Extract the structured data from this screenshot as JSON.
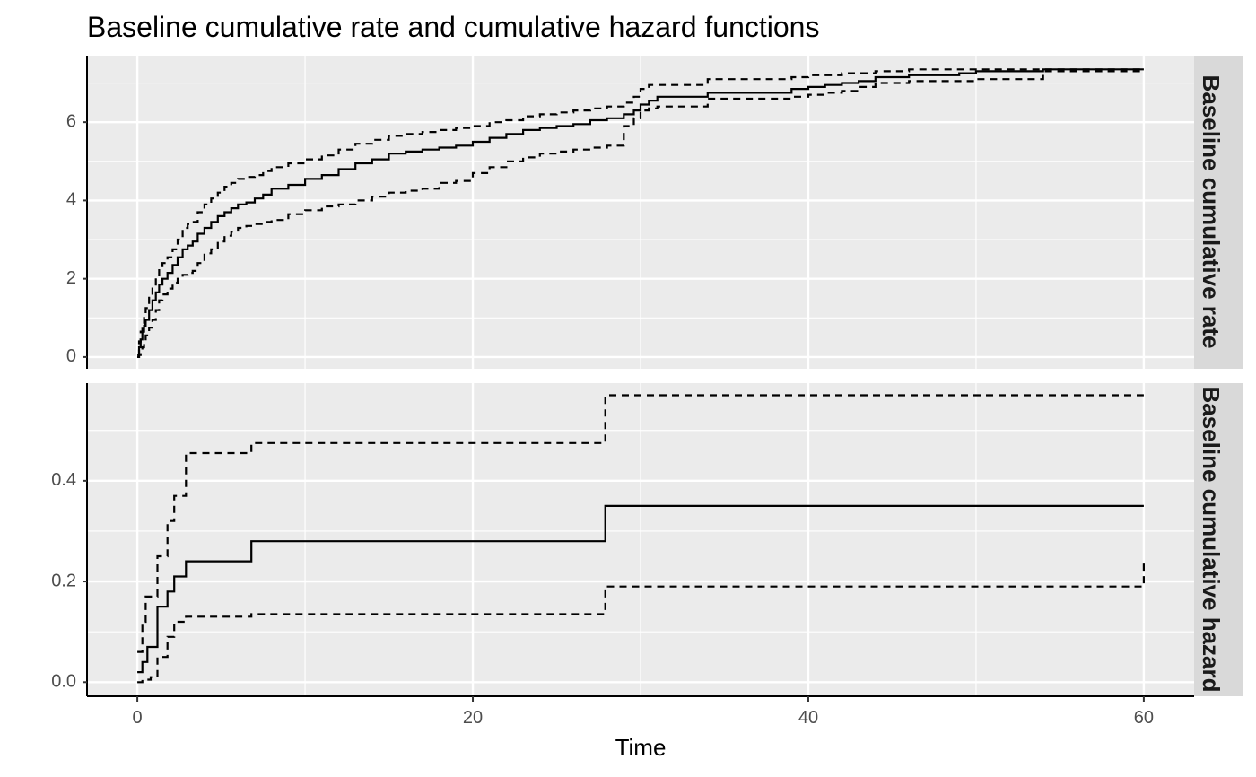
{
  "chart_data": {
    "type": "line",
    "title": "Baseline cumulative rate and cumulative hazard functions",
    "xlabel": "Time",
    "ylabel": "",
    "x_ticks": [
      0,
      20,
      40,
      60
    ],
    "xlim": [
      -3,
      63
    ],
    "grid": true,
    "line_color": "#000000",
    "panel_background": "#ebebeb",
    "strip_background": "#d9d9d9",
    "panels": [
      {
        "strip_label": "Baseline cumulative rate",
        "ylim": [
          -0.3,
          7.7
        ],
        "y_ticks": [
          0,
          2,
          4,
          6
        ],
        "series": [
          {
            "style": "solid",
            "x": [
              0,
              0.1,
              0.2,
              0.3,
              0.4,
              0.5,
              0.7,
              0.9,
              1.1,
              1.3,
              1.5,
              1.8,
              2.1,
              2.4,
              2.7,
              3.0,
              3.3,
              3.6,
              4.0,
              4.4,
              4.8,
              5.2,
              5.6,
              6.0,
              6.5,
              7.0,
              7.5,
              8.0,
              9.0,
              10.0,
              11.0,
              12.0,
              13.0,
              14.0,
              15.0,
              16.0,
              17.0,
              18.0,
              19.0,
              20.0,
              21.0,
              22.0,
              23.0,
              24.0,
              25.0,
              26.0,
              27.0,
              28.0,
              29.0,
              29.6,
              30.0,
              30.5,
              31.0,
              32.0,
              33.0,
              34.0,
              36.0,
              38.0,
              39.0,
              40.0,
              41.0,
              42.0,
              43.0,
              44.0,
              46.0,
              48.0,
              49.0,
              50.0,
              52.0,
              54.0,
              56.0,
              58.0,
              60.0
            ],
            "y": [
              0,
              0.25,
              0.45,
              0.65,
              0.8,
              0.95,
              1.2,
              1.45,
              1.65,
              1.85,
              2.0,
              2.15,
              2.35,
              2.55,
              2.75,
              2.85,
              2.95,
              3.15,
              3.3,
              3.45,
              3.6,
              3.7,
              3.8,
              3.9,
              3.95,
              4.05,
              4.15,
              4.3,
              4.4,
              4.55,
              4.65,
              4.8,
              4.95,
              5.05,
              5.2,
              5.25,
              5.3,
              5.35,
              5.4,
              5.5,
              5.6,
              5.7,
              5.8,
              5.85,
              5.9,
              5.95,
              6.05,
              6.1,
              6.2,
              6.3,
              6.45,
              6.55,
              6.65,
              6.65,
              6.65,
              6.75,
              6.75,
              6.75,
              6.85,
              6.9,
              6.95,
              7.0,
              7.05,
              7.15,
              7.2,
              7.2,
              7.25,
              7.3,
              7.3,
              7.35,
              7.35,
              7.35,
              7.35
            ]
          },
          {
            "style": "dashed",
            "x": [
              0,
              0.1,
              0.2,
              0.3,
              0.4,
              0.5,
              0.7,
              0.9,
              1.1,
              1.3,
              1.5,
              1.8,
              2.1,
              2.4,
              2.7,
              3.0,
              3.3,
              3.6,
              4.0,
              4.4,
              4.8,
              5.2,
              5.6,
              6.0,
              6.5,
              7.0,
              7.5,
              8.0,
              9.0,
              10.0,
              11.0,
              12.0,
              13.0,
              14.0,
              15.0,
              16.0,
              17.0,
              18.0,
              19.0,
              20.0,
              21.0,
              22.0,
              23.0,
              24.0,
              25.0,
              26.0,
              27.0,
              28.0,
              29.0,
              29.6,
              30.0,
              30.5,
              31.0,
              32.0,
              33.0,
              34.0,
              36.0,
              38.0,
              39.0,
              40.0,
              41.0,
              42.0,
              43.0,
              44.0,
              46.0,
              48.0,
              49.0,
              50.0,
              52.0,
              54.0,
              56.0,
              58.0,
              60.0
            ],
            "y": [
              0.05,
              0.4,
              0.65,
              0.85,
              1.05,
              1.25,
              1.55,
              1.8,
              2.05,
              2.25,
              2.4,
              2.55,
              2.75,
              3.0,
              3.3,
              3.4,
              3.45,
              3.7,
              3.9,
              4.05,
              4.2,
              4.35,
              4.45,
              4.55,
              4.6,
              4.65,
              4.75,
              4.85,
              4.95,
              5.05,
              5.15,
              5.3,
              5.45,
              5.55,
              5.65,
              5.7,
              5.75,
              5.8,
              5.85,
              5.9,
              6.0,
              6.05,
              6.15,
              6.2,
              6.25,
              6.3,
              6.35,
              6.4,
              6.5,
              6.65,
              6.85,
              6.95,
              6.95,
              6.95,
              6.95,
              7.1,
              7.1,
              7.1,
              7.15,
              7.2,
              7.2,
              7.25,
              7.25,
              7.3,
              7.35,
              7.35,
              7.35,
              7.35,
              7.35,
              7.35,
              7.35,
              7.35,
              7.35
            ]
          },
          {
            "style": "dashed",
            "x": [
              0,
              0.1,
              0.2,
              0.3,
              0.4,
              0.5,
              0.7,
              0.9,
              1.1,
              1.3,
              1.5,
              1.8,
              2.1,
              2.4,
              2.7,
              3.0,
              3.3,
              3.6,
              4.0,
              4.4,
              4.8,
              5.2,
              5.6,
              6.0,
              6.5,
              7.0,
              7.5,
              8.0,
              9.0,
              10.0,
              11.0,
              12.0,
              13.0,
              14.0,
              15.0,
              16.0,
              17.0,
              18.0,
              19.0,
              20.0,
              21.0,
              22.0,
              23.0,
              24.0,
              25.0,
              26.0,
              27.0,
              28.0,
              29.0,
              29.6,
              30.0,
              30.5,
              31.0,
              32.0,
              33.0,
              34.0,
              36.0,
              38.0,
              39.0,
              40.0,
              41.0,
              42.0,
              43.0,
              44.0,
              46.0,
              48.0,
              49.0,
              50.0,
              52.0,
              54.0,
              56.0,
              58.0,
              60.0
            ],
            "y": [
              0,
              0.05,
              0.15,
              0.25,
              0.4,
              0.55,
              0.75,
              0.95,
              1.2,
              1.45,
              1.6,
              1.75,
              1.9,
              2.0,
              2.1,
              2.15,
              2.2,
              2.4,
              2.65,
              2.75,
              2.95,
              3.1,
              3.2,
              3.3,
              3.35,
              3.4,
              3.45,
              3.5,
              3.65,
              3.75,
              3.85,
              3.9,
              4.0,
              4.1,
              4.2,
              4.25,
              4.3,
              4.45,
              4.5,
              4.7,
              4.85,
              5.0,
              5.1,
              5.2,
              5.25,
              5.3,
              5.35,
              5.4,
              5.9,
              6.1,
              6.3,
              6.35,
              6.4,
              6.4,
              6.4,
              6.6,
              6.6,
              6.6,
              6.65,
              6.7,
              6.75,
              6.8,
              6.9,
              7.0,
              7.05,
              7.05,
              7.05,
              7.1,
              7.1,
              7.3,
              7.3,
              7.3,
              7.3
            ]
          }
        ]
      },
      {
        "strip_label": "Baseline cumulative hazard",
        "ylim": [
          -0.028,
          0.594
        ],
        "y_ticks": [
          0.0,
          0.2,
          0.4
        ],
        "y_tick_labels": [
          "0.0",
          "0.2",
          "0.4"
        ],
        "series": [
          {
            "style": "solid",
            "x": [
              0,
              0.3,
              0.6,
              1.2,
              1.8,
              2.2,
              2.9,
              6.8,
              27.9,
              60
            ],
            "y": [
              0.02,
              0.04,
              0.07,
              0.15,
              0.18,
              0.21,
              0.24,
              0.28,
              0.35,
              0.35
            ]
          },
          {
            "style": "dashed",
            "x": [
              0,
              0.3,
              0.5,
              1.2,
              1.8,
              2.2,
              2.9,
              6.8,
              27.9,
              60
            ],
            "y": [
              0.06,
              0.12,
              0.17,
              0.25,
              0.32,
              0.37,
              0.455,
              0.475,
              0.57,
              0.57
            ]
          },
          {
            "style": "dashed",
            "x": [
              0,
              0.3,
              0.8,
              1.2,
              1.8,
              2.2,
              2.9,
              6.8,
              27.9,
              60
            ],
            "y": [
              0.0,
              0.005,
              0.01,
              0.05,
              0.09,
              0.12,
              0.13,
              0.135,
              0.19,
              0.24
            ]
          }
        ]
      }
    ]
  }
}
